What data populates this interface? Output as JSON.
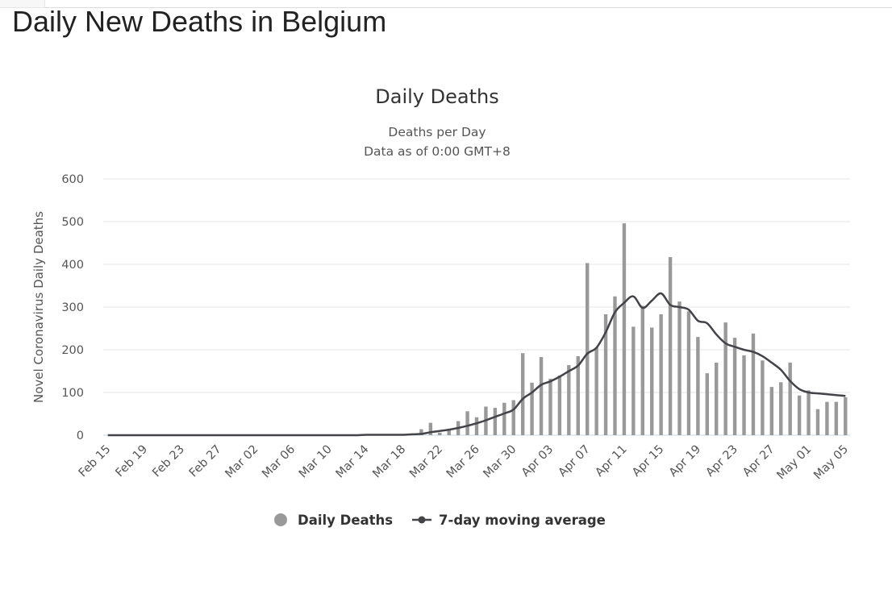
{
  "page": {
    "title": "Daily New Deaths in Belgium"
  },
  "colors": {
    "bar": "#999999",
    "line": "#434348",
    "grid": "#e6e6e6",
    "text": "#555555"
  },
  "chart_data": {
    "type": "bar",
    "title": "Daily Deaths",
    "subtitle": [
      "Deaths per Day",
      "Data as of 0:00 GMT+8"
    ],
    "ylabel": "Novel Coronavirus Daily Deaths",
    "xlabel": "",
    "ylim": [
      0,
      600
    ],
    "yticks": [
      0,
      100,
      200,
      300,
      400,
      500,
      600
    ],
    "categories": [
      "Feb 15",
      "Feb 16",
      "Feb 17",
      "Feb 18",
      "Feb 19",
      "Feb 20",
      "Feb 21",
      "Feb 22",
      "Feb 23",
      "Feb 24",
      "Feb 25",
      "Feb 26",
      "Feb 27",
      "Feb 28",
      "Feb 29",
      "Mar 01",
      "Mar 02",
      "Mar 03",
      "Mar 04",
      "Mar 05",
      "Mar 06",
      "Mar 07",
      "Mar 08",
      "Mar 09",
      "Mar 10",
      "Mar 11",
      "Mar 12",
      "Mar 13",
      "Mar 14",
      "Mar 15",
      "Mar 16",
      "Mar 17",
      "Mar 18",
      "Mar 19",
      "Mar 20",
      "Mar 21",
      "Mar 22",
      "Mar 23",
      "Mar 24",
      "Mar 25",
      "Mar 26",
      "Mar 27",
      "Mar 28",
      "Mar 29",
      "Mar 30",
      "Mar 31",
      "Apr 01",
      "Apr 02",
      "Apr 03",
      "Apr 04",
      "Apr 05",
      "Apr 06",
      "Apr 07",
      "Apr 08",
      "Apr 09",
      "Apr 10",
      "Apr 11",
      "Apr 12",
      "Apr 13",
      "Apr 14",
      "Apr 15",
      "Apr 16",
      "Apr 17",
      "Apr 18",
      "Apr 19",
      "Apr 20",
      "Apr 21",
      "Apr 22",
      "Apr 23",
      "Apr 24",
      "Apr 25",
      "Apr 26",
      "Apr 27",
      "Apr 28",
      "Apr 29",
      "Apr 30",
      "May 01",
      "May 02",
      "May 03",
      "May 04",
      "May 05"
    ],
    "tick_labels": [
      "Feb 15",
      "Feb 19",
      "Feb 23",
      "Feb 27",
      "Mar 02",
      "Mar 06",
      "Mar 10",
      "Mar 14",
      "Mar 18",
      "Mar 22",
      "Mar 26",
      "Mar 30",
      "Apr 03",
      "Apr 07",
      "Apr 11",
      "Apr 15",
      "Apr 19",
      "Apr 23",
      "Apr 27",
      "May 01",
      "May 05"
    ],
    "series": [
      {
        "name": "Daily Deaths",
        "kind": "bar",
        "values": [
          0,
          0,
          0,
          0,
          0,
          0,
          0,
          0,
          0,
          0,
          0,
          0,
          0,
          0,
          0,
          0,
          0,
          0,
          0,
          0,
          0,
          0,
          0,
          0,
          0,
          1,
          0,
          1,
          1,
          0,
          1,
          0,
          2,
          2,
          14,
          29,
          6,
          12,
          33,
          56,
          42,
          67,
          64,
          76,
          82,
          192,
          123,
          183,
          132,
          140,
          164,
          185,
          403,
          205,
          283,
          325,
          496,
          254,
          303,
          252,
          283,
          417,
          313,
          290,
          230,
          145,
          170,
          264,
          228,
          187,
          238,
          175,
          113,
          124,
          170,
          93,
          105,
          61,
          78,
          78,
          89
        ]
      },
      {
        "name": "7-day moving average",
        "kind": "line",
        "values": [
          0,
          0,
          0,
          0,
          0,
          0,
          0,
          0,
          0,
          0,
          0,
          0,
          0,
          0,
          0,
          0,
          0,
          0,
          0,
          0,
          0,
          0,
          0,
          0,
          0,
          0,
          0,
          0,
          1,
          1,
          1,
          1,
          1,
          2,
          3,
          7,
          10,
          13,
          17,
          22,
          28,
          35,
          43,
          51,
          60,
          85,
          100,
          118,
          126,
          137,
          150,
          163,
          191,
          205,
          241,
          288,
          310,
          325,
          298,
          315,
          332,
          305,
          300,
          294,
          268,
          262,
          236,
          215,
          207,
          200,
          195,
          185,
          170,
          153,
          127,
          108,
          100,
          98,
          96,
          94,
          92
        ]
      }
    ]
  }
}
